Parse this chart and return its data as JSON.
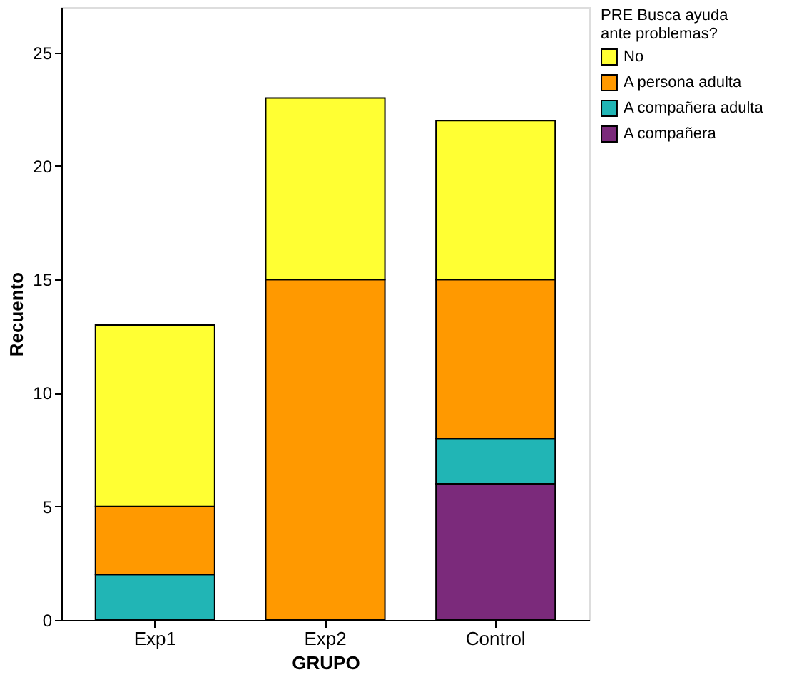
{
  "chart_data": {
    "type": "bar",
    "stacked": true,
    "xlabel": "GRUPO",
    "ylabel": "Recuento",
    "legend_title": "PRE Busca ayuda ante problemas?",
    "categories": [
      "Exp1",
      "Exp2",
      "Control"
    ],
    "series": [
      {
        "name": "A compañera",
        "color": "#7b2a7b",
        "values": [
          0,
          0,
          6
        ]
      },
      {
        "name": "A compañera adulta",
        "color": "#21b5b5",
        "values": [
          2,
          0,
          2
        ]
      },
      {
        "name": "A persona adulta",
        "color": "#ff9900",
        "values": [
          3,
          15,
          7
        ]
      },
      {
        "name": "No",
        "color": "#ffff33",
        "values": [
          8,
          8,
          7
        ]
      }
    ],
    "ylim": [
      0,
      27
    ],
    "yticks": [
      0,
      5,
      10,
      15,
      20,
      25
    ],
    "grid": false,
    "legend": "top right"
  }
}
